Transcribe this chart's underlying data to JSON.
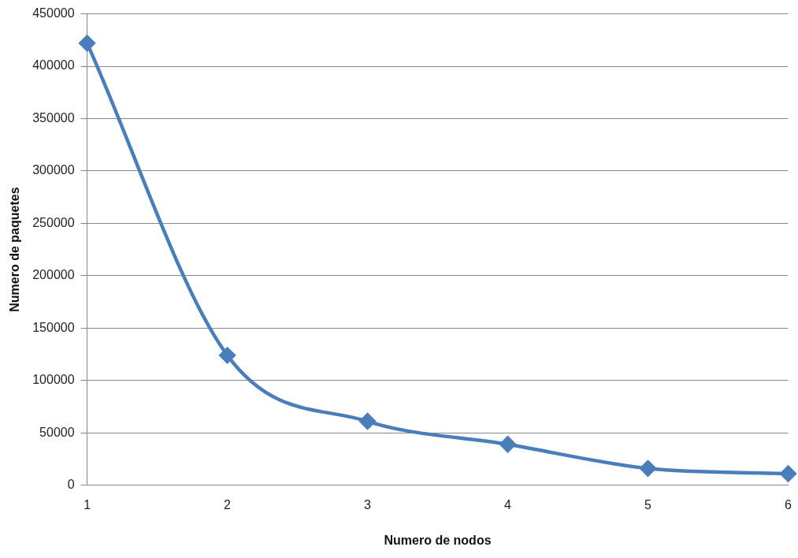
{
  "chart_data": {
    "type": "line",
    "xlabel": "Numero de nodos",
    "ylabel": "Numero de paquetes",
    "categories": [
      "1",
      "2",
      "3",
      "4",
      "5",
      "6"
    ],
    "series": [
      {
        "color": "#4a7ebb",
        "values": [
          422000,
          124000,
          61000,
          39000,
          16000,
          11000
        ]
      }
    ],
    "ylim": [
      0,
      450000
    ],
    "yticks": [
      0,
      50000,
      100000,
      150000,
      200000,
      250000,
      300000,
      350000,
      400000,
      450000
    ],
    "grid": "y",
    "legend": false,
    "marker": "diamond",
    "line_style": "solid"
  }
}
